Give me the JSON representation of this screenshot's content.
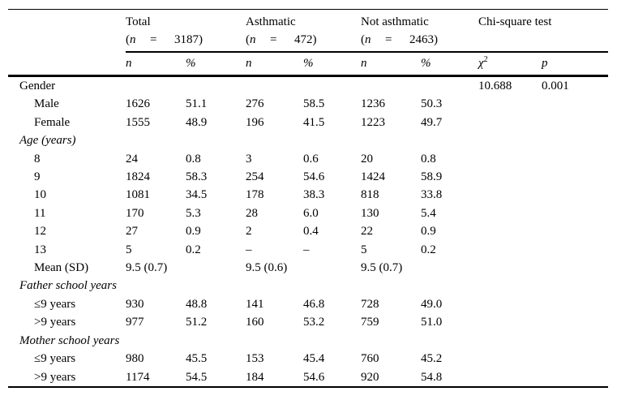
{
  "colors": {
    "background": "#ffffff",
    "text": "#000000",
    "rule": "#000000"
  },
  "table": {
    "n_symbol": "n",
    "equals_symbol": "=",
    "punct": {
      "open": "(",
      "close": ")"
    },
    "column_groups": [
      {
        "title": "Total",
        "count": "3187"
      },
      {
        "title": "Asthmatic",
        "count": "472"
      },
      {
        "title": "Not asthmatic",
        "count": "2463"
      },
      {
        "title": "Chi-square test",
        "count": null
      }
    ],
    "sub_columns": [
      {
        "label": "n"
      },
      {
        "label": "%"
      },
      {
        "label": "n"
      },
      {
        "label": "%"
      },
      {
        "label": "n"
      },
      {
        "label": "%"
      },
      {
        "label": "χ",
        "sup": "2"
      },
      {
        "label": "p"
      }
    ],
    "rows": [
      {
        "label": "Gender",
        "type": "section",
        "cells": [
          "",
          "",
          "",
          "",
          "",
          "",
          "10.688",
          "0.001"
        ]
      },
      {
        "label": "Male",
        "type": "data",
        "cells": [
          "1626",
          "51.1",
          "276",
          "58.5",
          "1236",
          "50.3",
          "",
          ""
        ]
      },
      {
        "label": "Female",
        "type": "data",
        "cells": [
          "1555",
          "48.9",
          "196",
          "41.5",
          "1223",
          "49.7",
          "",
          ""
        ]
      },
      {
        "label": "Age (years)",
        "type": "section-italic",
        "cells": [
          "",
          "",
          "",
          "",
          "",
          "",
          "",
          ""
        ]
      },
      {
        "label": "8",
        "type": "data",
        "cells": [
          "24",
          "0.8",
          "3",
          "0.6",
          "20",
          "0.8",
          "",
          ""
        ]
      },
      {
        "label": "9",
        "type": "data",
        "cells": [
          "1824",
          "58.3",
          "254",
          "54.6",
          "1424",
          "58.9",
          "",
          ""
        ]
      },
      {
        "label": "10",
        "type": "data",
        "cells": [
          "1081",
          "34.5",
          "178",
          "38.3",
          "818",
          "33.8",
          "",
          ""
        ]
      },
      {
        "label": "11",
        "type": "data",
        "cells": [
          "170",
          "5.3",
          "28",
          "6.0",
          "130",
          "5.4",
          "",
          ""
        ]
      },
      {
        "label": "12",
        "type": "data",
        "cells": [
          "27",
          "0.9",
          "2",
          "0.4",
          "22",
          "0.9",
          "",
          ""
        ]
      },
      {
        "label": "13",
        "type": "data",
        "cells": [
          "5",
          "0.2",
          "–",
          "–",
          "5",
          "0.2",
          "",
          ""
        ]
      },
      {
        "label": "Mean (SD)",
        "type": "data",
        "cells": [
          "9.5 (0.7)",
          "",
          "9.5 (0.6)",
          "",
          "9.5 (0.7)",
          "",
          "",
          ""
        ]
      },
      {
        "label": "Father school years",
        "type": "section-italic",
        "cells": [
          "",
          "",
          "",
          "",
          "",
          "",
          "",
          ""
        ]
      },
      {
        "label": "≤9 years",
        "type": "data",
        "cells": [
          "930",
          "48.8",
          "141",
          "46.8",
          "728",
          "49.0",
          "",
          ""
        ]
      },
      {
        "label": ">9 years",
        "type": "data",
        "cells": [
          "977",
          "51.2",
          "160",
          "53.2",
          "759",
          "51.0",
          "",
          ""
        ]
      },
      {
        "label": "Mother school years",
        "type": "section-italic",
        "cells": [
          "",
          "",
          "",
          "",
          "",
          "",
          "",
          ""
        ]
      },
      {
        "label": "≤9 years",
        "type": "data",
        "cells": [
          "980",
          "45.5",
          "153",
          "45.4",
          "760",
          "45.2",
          "",
          ""
        ]
      },
      {
        "label": ">9 years",
        "type": "data",
        "cells": [
          "1174",
          "54.5",
          "184",
          "54.6",
          "920",
          "54.8",
          "",
          ""
        ]
      }
    ]
  }
}
